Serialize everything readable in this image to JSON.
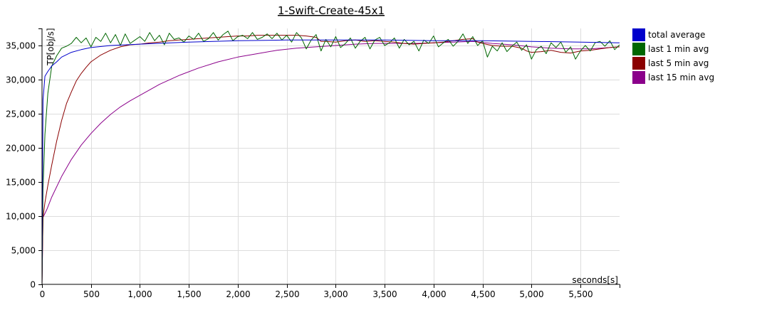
{
  "chart_data": {
    "type": "line",
    "title": "1-Swift-Create-45x1",
    "xlabel": "seconds[s]",
    "ylabel": "TP[obj/s]",
    "xlim": [
      0,
      5900
    ],
    "ylim": [
      0,
      37500
    ],
    "x_ticks": [
      0,
      500,
      1000,
      1500,
      2000,
      2500,
      3000,
      3500,
      4000,
      4500,
      5000,
      5500
    ],
    "x_tick_labels": [
      "0",
      "500",
      "1,000",
      "1,500",
      "2,000",
      "2,500",
      "3,000",
      "3,500",
      "4,000",
      "4,500",
      "5,000",
      "5,500"
    ],
    "y_ticks": [
      0,
      5000,
      10000,
      15000,
      20000,
      25000,
      30000,
      35000
    ],
    "y_tick_labels": [
      "0",
      "5,000",
      "10,000",
      "15,000",
      "20,000",
      "25,000",
      "30,000",
      "35,000"
    ],
    "grid": true,
    "legend_position": "right",
    "series": [
      {
        "name": "total average",
        "color": "#0000cc",
        "x": [
          0,
          10,
          30,
          60,
          100,
          150,
          200,
          300,
          400,
          500,
          700,
          1000,
          1500,
          2000,
          2500,
          3000,
          3500,
          4000,
          4500,
          5000,
          5500,
          5900
        ],
        "y": [
          0,
          27000,
          30500,
          31200,
          32000,
          32600,
          33300,
          34000,
          34400,
          34700,
          35000,
          35200,
          35500,
          35700,
          35800,
          35800,
          35800,
          35700,
          35700,
          35600,
          35500,
          35400
        ]
      },
      {
        "name": "last 1 min avg",
        "color": "#006600",
        "x": [
          0,
          10,
          30,
          60,
          100,
          150,
          200,
          250,
          300,
          350,
          400,
          450,
          500,
          550,
          600,
          650,
          700,
          750,
          800,
          850,
          900,
          950,
          1000,
          1050,
          1100,
          1150,
          1200,
          1250,
          1300,
          1350,
          1400,
          1450,
          1500,
          1550,
          1600,
          1650,
          1700,
          1750,
          1800,
          1850,
          1900,
          1950,
          2000,
          2050,
          2100,
          2150,
          2200,
          2250,
          2300,
          2350,
          2400,
          2450,
          2500,
          2550,
          2600,
          2650,
          2700,
          2750,
          2800,
          2850,
          2900,
          2950,
          3000,
          3050,
          3100,
          3150,
          3200,
          3250,
          3300,
          3350,
          3400,
          3450,
          3500,
          3550,
          3600,
          3650,
          3700,
          3750,
          3800,
          3850,
          3900,
          3950,
          4000,
          4050,
          4100,
          4150,
          4200,
          4250,
          4300,
          4350,
          4400,
          4450,
          4500,
          4550,
          4600,
          4650,
          4700,
          4750,
          4800,
          4850,
          4900,
          4950,
          5000,
          5050,
          5100,
          5150,
          5200,
          5250,
          5300,
          5350,
          5400,
          5450,
          5500,
          5550,
          5600,
          5650,
          5700,
          5750,
          5800,
          5850,
          5900
        ],
        "y": [
          0,
          14000,
          22000,
          28000,
          32000,
          33500,
          34600,
          34900,
          35300,
          36200,
          35400,
          36100,
          34800,
          36200,
          35600,
          36800,
          35400,
          36600,
          35000,
          36700,
          35300,
          35800,
          36300,
          35600,
          36900,
          35700,
          36500,
          35100,
          36800,
          35900,
          36100,
          35500,
          36400,
          35900,
          36800,
          35600,
          36000,
          36900,
          35800,
          36600,
          37100,
          35700,
          36300,
          36500,
          36000,
          36900,
          35900,
          36200,
          36700,
          36000,
          36800,
          35800,
          36500,
          35500,
          36900,
          36100,
          34500,
          35800,
          36600,
          34200,
          35900,
          34800,
          36300,
          34700,
          35300,
          36100,
          34600,
          35600,
          36200,
          34500,
          35800,
          36200,
          35000,
          35400,
          36100,
          34600,
          35900,
          35100,
          35600,
          34200,
          35800,
          35300,
          36400,
          34800,
          35400,
          35900,
          34900,
          35600,
          36700,
          35300,
          36300,
          35000,
          35700,
          33300,
          34900,
          34200,
          35400,
          34100,
          34900,
          35500,
          34300,
          35100,
          33000,
          34400,
          34900,
          33800,
          35400,
          34700,
          35500,
          34000,
          34800,
          33000,
          34200,
          35000,
          34200,
          35400,
          35600,
          34900,
          35700,
          34400,
          35100
        ]
      },
      {
        "name": "last 5 min avg",
        "color": "#8b0000",
        "x": [
          0,
          10,
          30,
          60,
          100,
          150,
          200,
          250,
          300,
          350,
          400,
          450,
          500,
          600,
          700,
          800,
          900,
          1000,
          1100,
          1200,
          1300,
          1400,
          1500,
          1600,
          1700,
          1800,
          1900,
          2000,
          2100,
          2200,
          2300,
          2400,
          2500,
          2600,
          2700,
          2800,
          2850,
          2900,
          3000,
          3100,
          3200,
          3300,
          3400,
          3500,
          3600,
          3700,
          3800,
          3900,
          4000,
          4100,
          4200,
          4300,
          4400,
          4450,
          4500,
          4600,
          4700,
          4800,
          4900,
          4950,
          5000,
          5100,
          5200,
          5300,
          5400,
          5500,
          5600,
          5700,
          5800,
          5900
        ],
        "y": [
          0,
          9800,
          12000,
          14500,
          17500,
          21000,
          24000,
          26500,
          28200,
          29800,
          30900,
          31800,
          32600,
          33600,
          34300,
          34800,
          35100,
          35200,
          35400,
          35500,
          35700,
          35800,
          35900,
          36000,
          36100,
          36200,
          36300,
          36400,
          36400,
          36500,
          36500,
          36500,
          36500,
          36500,
          36400,
          36200,
          35600,
          35600,
          35500,
          35700,
          35800,
          35600,
          35700,
          35600,
          35500,
          35300,
          35200,
          35300,
          35400,
          35500,
          35700,
          35900,
          36000,
          35500,
          35300,
          35000,
          34900,
          34900,
          34600,
          34200,
          34000,
          34100,
          34300,
          34000,
          33900,
          34200,
          34300,
          34500,
          34700,
          34800
        ]
      },
      {
        "name": "last 15 min avg",
        "color": "#8b008b",
        "x": [
          0,
          10,
          50,
          100,
          200,
          300,
          400,
          500,
          600,
          700,
          800,
          900,
          1000,
          1200,
          1400,
          1600,
          1800,
          2000,
          2200,
          2400,
          2600,
          2800,
          3000,
          3200,
          3400,
          3600,
          3800,
          4000,
          4200,
          4400,
          4600,
          4800,
          5000,
          5200,
          5400,
          5600,
          5800,
          5900
        ],
        "y": [
          0,
          9800,
          11000,
          12800,
          15800,
          18300,
          20400,
          22100,
          23600,
          24900,
          26000,
          26900,
          27700,
          29300,
          30600,
          31700,
          32600,
          33300,
          33800,
          34300,
          34600,
          34800,
          35000,
          35200,
          35300,
          35300,
          35300,
          35400,
          35500,
          35600,
          35300,
          35100,
          34800,
          34600,
          34500,
          34500,
          34700,
          34800
        ]
      }
    ]
  }
}
